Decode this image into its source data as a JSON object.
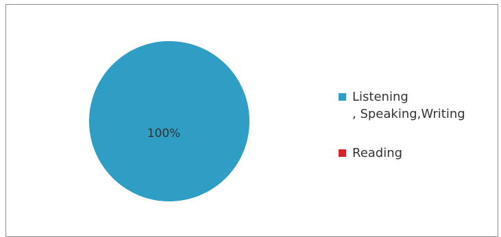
{
  "chart_data": {
    "type": "pie",
    "title": "",
    "slices": [
      {
        "label": "Listening\n, Speaking,Writing",
        "value": 100,
        "color": "#2e9ec4",
        "data_label": "100%"
      },
      {
        "label": "Reading",
        "value": 0,
        "color": "#d7232a",
        "data_label": ""
      }
    ],
    "legend_position": "right"
  }
}
